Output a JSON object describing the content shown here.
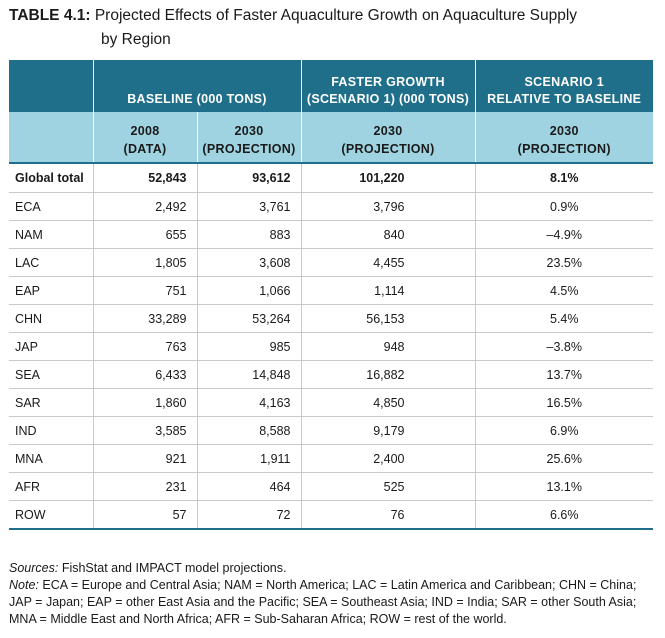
{
  "title": {
    "label": "TABLE 4.1:",
    "line1": "Projected Effects of Faster Aquaculture Growth on Aquaculture Supply",
    "line2": "by Region"
  },
  "header": {
    "group_baseline": "BASELINE (000 TONS)",
    "group_faster_line1": "FASTER GROWTH",
    "group_faster_line2": "(SCENARIO 1) (000 TONS)",
    "group_relative_line1": "SCENARIO 1",
    "group_relative_line2": "RELATIVE TO BASELINE",
    "sub": [
      {
        "line1": "2008",
        "line2": "(DATA)"
      },
      {
        "line1": "2030",
        "line2": "(PROJECTION)"
      },
      {
        "line1": "2030",
        "line2": "(PROJECTION)"
      },
      {
        "line1": "2030",
        "line2": "(PROJECTION)"
      }
    ]
  },
  "rows": [
    {
      "region": "Global total",
      "b2008": "52,843",
      "b2030": "93,612",
      "fg2030": "101,220",
      "rel": "8.1%"
    },
    {
      "region": "ECA",
      "b2008": "2,492",
      "b2030": "3,761",
      "fg2030": "3,796",
      "rel": "0.9%"
    },
    {
      "region": "NAM",
      "b2008": "655",
      "b2030": "883",
      "fg2030": "840",
      "rel": "–4.9%"
    },
    {
      "region": "LAC",
      "b2008": "1,805",
      "b2030": "3,608",
      "fg2030": "4,455",
      "rel": "23.5%"
    },
    {
      "region": "EAP",
      "b2008": "751",
      "b2030": "1,066",
      "fg2030": "1,114",
      "rel": "4.5%"
    },
    {
      "region": "CHN",
      "b2008": "33,289",
      "b2030": "53,264",
      "fg2030": "56,153",
      "rel": "5.4%"
    },
    {
      "region": "JAP",
      "b2008": "763",
      "b2030": "985",
      "fg2030": "948",
      "rel": "–3.8%"
    },
    {
      "region": "SEA",
      "b2008": "6,433",
      "b2030": "14,848",
      "fg2030": "16,882",
      "rel": "13.7%"
    },
    {
      "region": "SAR",
      "b2008": "1,860",
      "b2030": "4,163",
      "fg2030": "4,850",
      "rel": "16.5%"
    },
    {
      "region": "IND",
      "b2008": "3,585",
      "b2030": "8,588",
      "fg2030": "9,179",
      "rel": "6.9%"
    },
    {
      "region": "MNA",
      "b2008": "921",
      "b2030": "1,911",
      "fg2030": "2,400",
      "rel": "25.6%"
    },
    {
      "region": "AFR",
      "b2008": "231",
      "b2030": "464",
      "fg2030": "525",
      "rel": "13.1%"
    },
    {
      "region": "ROW",
      "b2008": "57",
      "b2030": "72",
      "fg2030": "76",
      "rel": "6.6%"
    }
  ],
  "notes": {
    "sources_label": "Sources:",
    "sources_text": " FishStat and IMPACT model projections.",
    "note_label": "Note:",
    "note_text": " ECA = Europe and Central Asia; NAM = North America; LAC = Latin America and Caribbean; CHN = China; JAP = Japan; EAP = other East Asia and the Pacific; SEA = Southeast Asia; IND = India; SAR = other South Asia; MNA = Middle East and North Africa; AFR = Sub-Saharan Africa; ROW = rest of the world."
  },
  "colors": {
    "header_dark": "#1f6f8b",
    "header_light": "#9fd3e1"
  }
}
